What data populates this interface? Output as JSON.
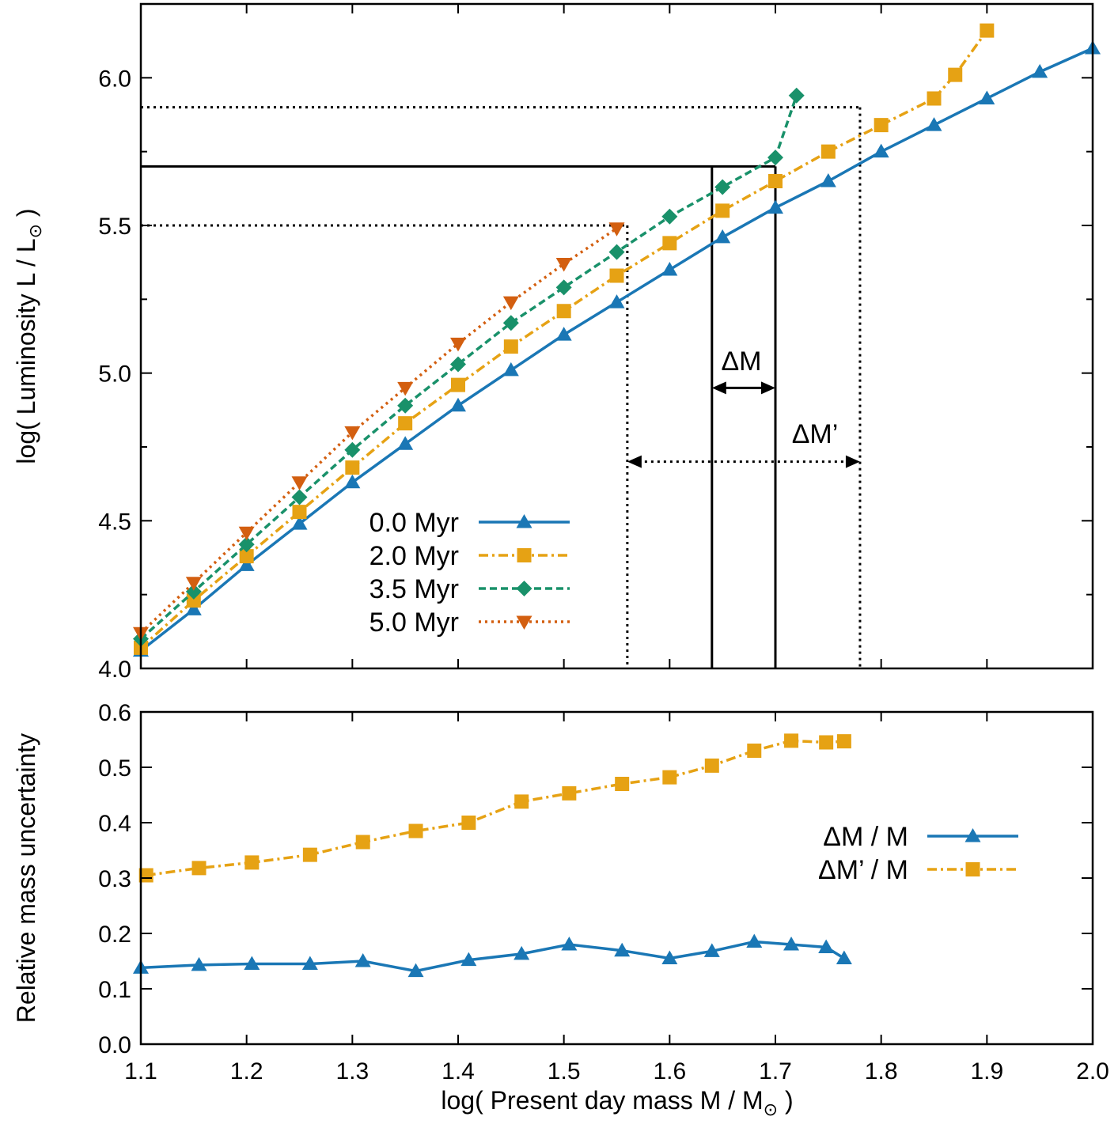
{
  "colors": {
    "blue": "#1a77b5",
    "orange": "#e6a214",
    "green": "#19916a",
    "vermillion": "#d35f10",
    "black": "#000000"
  },
  "chart_data": [
    {
      "type": "line",
      "panel": "top",
      "title": "",
      "xlabel": "",
      "ylabel": "log( Luminosity L / L",
      "ylabel_sub": "⊙",
      "ylabel_suffix": " )",
      "xlim": [
        1.1,
        2.0
      ],
      "ylim": [
        4.0,
        6.25
      ],
      "yticks": [
        "4.0",
        "4.5",
        "5.0",
        "5.5",
        "6.0"
      ],
      "legend_position": "center-left",
      "series": [
        {
          "name": "0.0 Myr",
          "color": "#1a77b5",
          "style": "solid",
          "marker": "triangle-up",
          "x": [
            1.1,
            1.15,
            1.2,
            1.25,
            1.3,
            1.35,
            1.4,
            1.45,
            1.5,
            1.55,
            1.6,
            1.65,
            1.7,
            1.75,
            1.8,
            1.85,
            1.9,
            1.95,
            2.0
          ],
          "y": [
            4.06,
            4.2,
            4.35,
            4.49,
            4.63,
            4.76,
            4.89,
            5.01,
            5.13,
            5.24,
            5.35,
            5.46,
            5.56,
            5.65,
            5.75,
            5.84,
            5.93,
            6.02,
            6.1
          ]
        },
        {
          "name": "2.0 Myr",
          "color": "#e6a214",
          "style": "dashdot",
          "marker": "square",
          "x": [
            1.1,
            1.15,
            1.2,
            1.25,
            1.3,
            1.35,
            1.4,
            1.45,
            1.5,
            1.55,
            1.6,
            1.65,
            1.7,
            1.75,
            1.8,
            1.85,
            1.87,
            1.9
          ],
          "y": [
            4.07,
            4.23,
            4.38,
            4.53,
            4.68,
            4.83,
            4.96,
            5.09,
            5.21,
            5.33,
            5.44,
            5.55,
            5.65,
            5.75,
            5.84,
            5.93,
            6.01,
            6.16
          ]
        },
        {
          "name": "3.5 Myr",
          "color": "#19916a",
          "style": "dashed",
          "marker": "diamond",
          "x": [
            1.1,
            1.15,
            1.2,
            1.25,
            1.3,
            1.35,
            1.4,
            1.45,
            1.5,
            1.55,
            1.6,
            1.65,
            1.7,
            1.72
          ],
          "y": [
            4.1,
            4.26,
            4.42,
            4.58,
            4.74,
            4.89,
            5.03,
            5.17,
            5.29,
            5.41,
            5.53,
            5.63,
            5.73,
            5.94
          ]
        },
        {
          "name": "5.0 Myr",
          "color": "#d35f10",
          "style": "dotted",
          "marker": "triangle-down",
          "x": [
            1.1,
            1.15,
            1.2,
            1.25,
            1.3,
            1.35,
            1.4,
            1.45,
            1.5,
            1.55
          ],
          "y": [
            4.12,
            4.29,
            4.46,
            4.63,
            4.8,
            4.95,
            5.1,
            5.24,
            5.37,
            5.49
          ]
        }
      ],
      "annotations": [
        {
          "text": "ΔM",
          "note": "interval 1.64–1.70 at log L = 5.7"
        },
        {
          "text": "ΔM’",
          "note": "interval 1.56–1.78 for log L 5.5–5.9"
        }
      ],
      "guide_values": {
        "solid_level": 5.7,
        "dotted_levels": [
          5.5,
          5.9
        ],
        "solid_masses": [
          1.64,
          1.7
        ],
        "dotted_masses": [
          1.56,
          1.78
        ],
        "arrow_dm_y": 4.95,
        "arrow_dmp_y": 4.7
      }
    },
    {
      "type": "line",
      "panel": "bottom",
      "title": "",
      "xlabel": "log( Present day mass M / M",
      "xlabel_sub": "⊙",
      "xlabel_suffix": " )",
      "ylabel": "Relative mass uncertainty",
      "xlim": [
        1.1,
        2.0
      ],
      "ylim": [
        0.0,
        0.6
      ],
      "xticks": [
        "1.1",
        "1.2",
        "1.3",
        "1.4",
        "1.5",
        "1.6",
        "1.7",
        "1.8",
        "1.9",
        "2.0"
      ],
      "yticks": [
        "0.0",
        "0.1",
        "0.2",
        "0.3",
        "0.4",
        "0.5",
        "0.6"
      ],
      "legend_position": "right",
      "series": [
        {
          "name": "ΔM / M",
          "color": "#1a77b5",
          "style": "solid",
          "marker": "triangle-up",
          "x": [
            1.1,
            1.155,
            1.205,
            1.26,
            1.31,
            1.36,
            1.41,
            1.46,
            1.505,
            1.555,
            1.6,
            1.64,
            1.68,
            1.715,
            1.748,
            1.765
          ],
          "y": [
            0.138,
            0.143,
            0.145,
            0.145,
            0.15,
            0.132,
            0.152,
            0.163,
            0.18,
            0.169,
            0.155,
            0.168,
            0.185,
            0.18,
            0.175,
            0.155
          ]
        },
        {
          "name": "ΔM’ / M",
          "color": "#e6a214",
          "style": "dashdot",
          "marker": "square",
          "x": [
            1.105,
            1.155,
            1.205,
            1.26,
            1.31,
            1.36,
            1.41,
            1.46,
            1.505,
            1.555,
            1.6,
            1.64,
            1.68,
            1.715,
            1.748,
            1.765
          ],
          "y": [
            0.305,
            0.318,
            0.328,
            0.342,
            0.365,
            0.385,
            0.4,
            0.438,
            0.453,
            0.47,
            0.482,
            0.503,
            0.53,
            0.548,
            0.545,
            0.547
          ]
        }
      ]
    }
  ]
}
